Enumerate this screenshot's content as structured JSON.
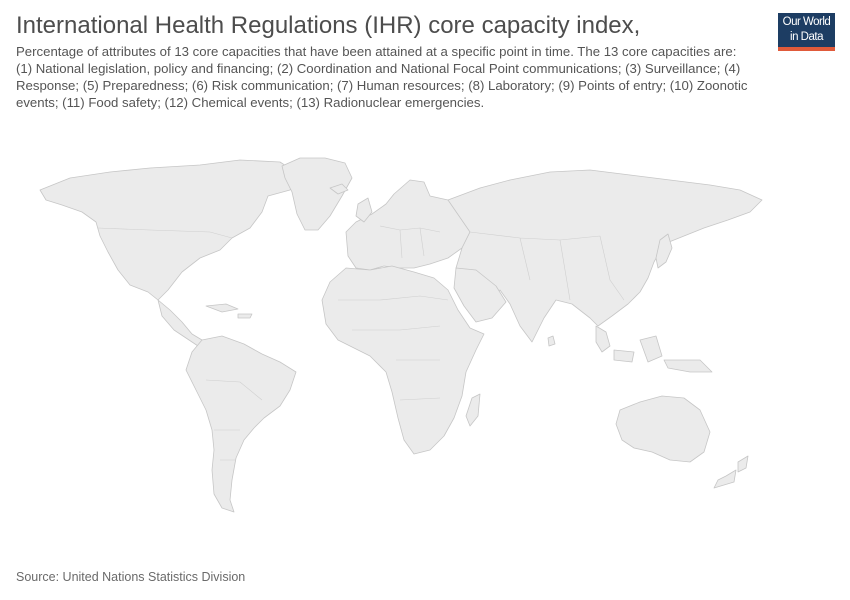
{
  "header": {
    "title": "International Health Regulations (IHR) core capacity index,",
    "subtitle": "Percentage of attributes of 13 core capacities that have been attained at a specific point in time. The 13 core capacities are: (1) National legislation, policy and financing; (2) Coordination and National Focal Point communications; (3) Surveillance; (4) Response; (5) Preparedness; (6) Risk communication; (7) Human resources; (8) Laboratory; (9) Points of entry; (10) Zoonotic events; (11) Food safety; (12) Chemical events; (13) Radionuclear emergencies."
  },
  "logo": {
    "line1": "Our World",
    "line2": "in Data",
    "bg_color": "#1d3d63",
    "accent_color": "#e05a3a"
  },
  "map": {
    "land_color": "#ebebeb",
    "border_color": "#c6c6c6"
  },
  "footer": {
    "source": "Source: United Nations Statistics Division"
  }
}
